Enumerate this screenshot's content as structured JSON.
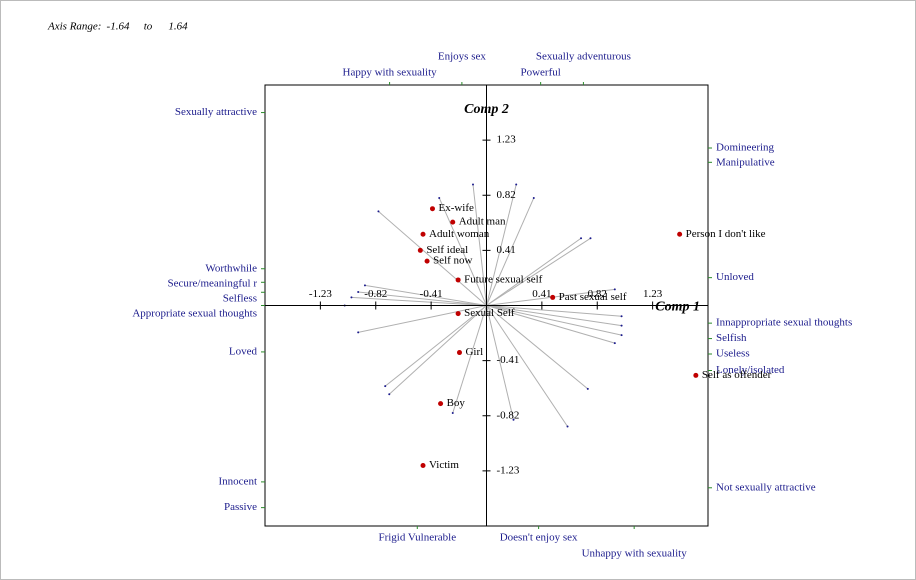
{
  "chart_data": {
    "type": "scatter",
    "range_label": "Axis Range:",
    "range_separator": "to",
    "xlabel": "Comp 1",
    "ylabel": "Comp 2",
    "xlim": [
      -1.64,
      1.64
    ],
    "ylim": [
      -1.64,
      1.64
    ],
    "xticks": [
      -1.23,
      -0.82,
      -0.41,
      0.41,
      0.82,
      1.23
    ],
    "yticks": [
      1.23,
      0.82,
      0.41,
      -0.41,
      -0.82,
      -1.23
    ],
    "elements": {
      "color": "#c00000",
      "labels": [
        "Person I don't like",
        "Self as offender",
        "Past sexual self",
        "Future sexual self",
        "Sexual Self",
        "Self now",
        "Self ideal",
        "Adult woman",
        "Adult man",
        "Ex-wife",
        "Girl",
        "Boy",
        "Victim"
      ],
      "x": [
        1.43,
        1.55,
        0.49,
        -0.21,
        -0.21,
        -0.44,
        -0.49,
        -0.47,
        -0.25,
        -0.4,
        -0.2,
        -0.34,
        -0.47
      ],
      "y": [
        0.53,
        -0.52,
        0.06,
        0.19,
        -0.06,
        0.33,
        0.41,
        0.53,
        0.62,
        0.72,
        -0.35,
        -0.73,
        -1.19
      ]
    },
    "constructs": {
      "color": "#1c1c8c",
      "line_color": "#b0b0b0",
      "labels": [
        "Sexually attractive",
        "Worthwhile",
        "Secure/meaningful r",
        "Selfless",
        "Appropriate sexual thoughts",
        "Loved",
        "Innocent",
        "Passive",
        "Happy with sexuality",
        "Enjoys sex",
        "Powerful",
        "Sexually adventurous",
        "Domineering",
        "Manipulative",
        "Unloved",
        "Innappropriate sexual thoughts",
        "Selfish",
        "Useless",
        "Lonely/isolated",
        "Not sexually attractive",
        "Frigid Vulnerable",
        "Doesn't enjoy sex",
        "Unhappy with sexuality"
      ],
      "x": [
        -0.8,
        -0.9,
        -0.95,
        -1.0,
        -1.05,
        -0.95,
        -0.75,
        -0.72,
        -0.35,
        -0.1,
        0.22,
        0.35,
        0.7,
        0.77,
        0.95,
        1.0,
        1.0,
        1.0,
        0.95,
        0.75,
        -0.25,
        0.2,
        0.6
      ],
      "y": [
        0.7,
        0.15,
        0.1,
        0.06,
        0.0,
        -0.2,
        -0.6,
        -0.66,
        0.8,
        0.9,
        0.9,
        0.8,
        0.5,
        0.5,
        0.12,
        -0.08,
        -0.15,
        -0.22,
        -0.28,
        -0.62,
        -0.8,
        -0.85,
        -0.9
      ]
    }
  }
}
